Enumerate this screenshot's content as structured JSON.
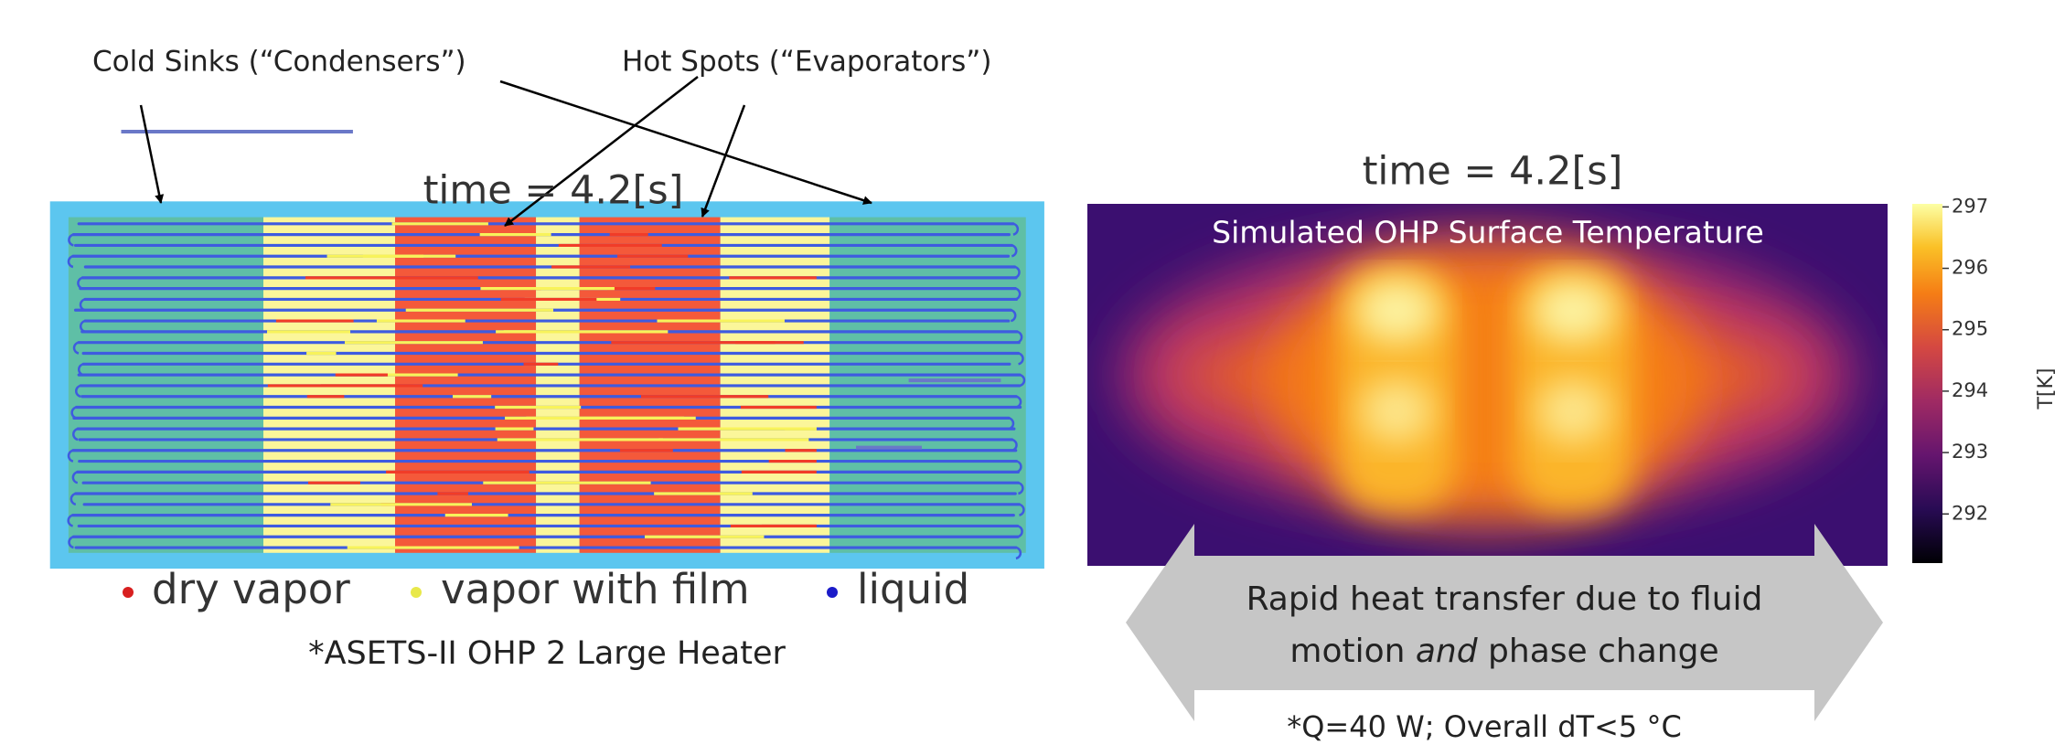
{
  "annotations": {
    "cold_sinks": "Cold Sinks (“Condensers”)",
    "hot_spots": "Hot Spots (“Evaporators”)"
  },
  "left_panel": {
    "time_label": "time = 4.2[s]",
    "legend": [
      "dry vapor",
      "vapor with film",
      "liquid"
    ],
    "caption": "*ASETS-II OHP 2 Large Heater"
  },
  "right_panel": {
    "time_label": "time = 4.2[s]",
    "heatmap_title": "Simulated OHP Surface Temperature",
    "colorbar": {
      "label": "T[K]",
      "lim": [
        291.2,
        297.05
      ],
      "ticks": [
        292,
        293,
        294,
        295,
        296,
        297
      ]
    },
    "arrow_text": {
      "line1": "Rapid heat transfer due to fluid",
      "line2": [
        "motion ",
        "and",
        " phase change"
      ]
    },
    "footnote": "*Q=40 W; Overall dT<5 °C"
  }
}
